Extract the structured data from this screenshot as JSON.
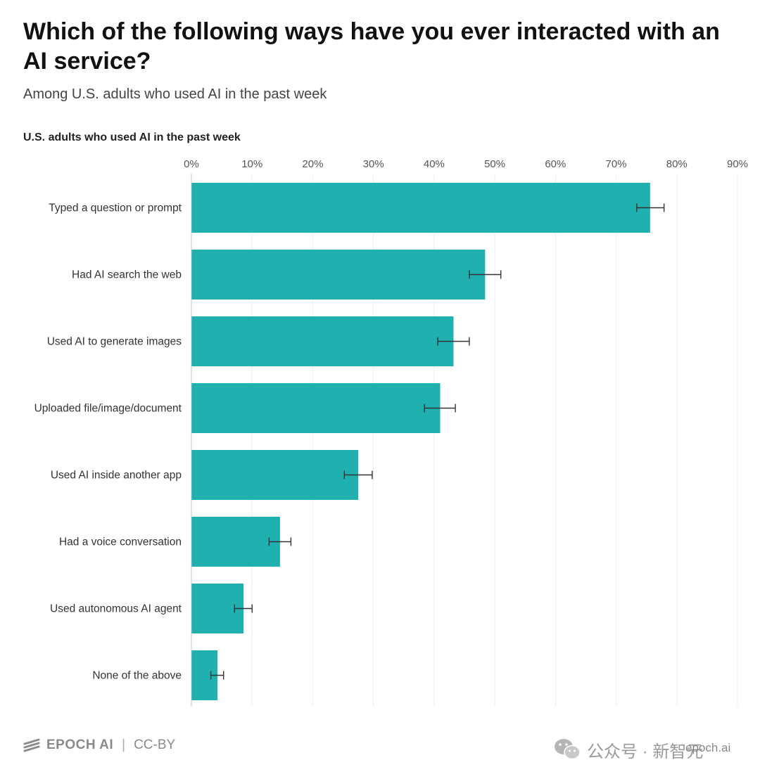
{
  "title": "Which of the following ways have you ever interacted with an AI service?",
  "subtitle": "Among U.S. adults who used AI in the past week",
  "panel_label": "U.S. adults who used AI in the past week",
  "colors": {
    "bar": "#1fb0af",
    "grid": "#ececec",
    "axis": "#bdbdbd",
    "errorbar": "#333333"
  },
  "chart_data": {
    "type": "bar",
    "orientation": "horizontal",
    "categories": [
      "Typed a question or prompt",
      "Had AI search the web",
      "Used AI to generate images",
      "Uploaded file/image/document",
      "Used AI inside another app",
      "Had a voice conversation",
      "Used autonomous AI agent",
      "None of the above"
    ],
    "values": [
      75.6,
      48.4,
      43.2,
      41.0,
      27.5,
      14.6,
      8.6,
      4.3
    ],
    "error_low": [
      73.4,
      45.8,
      40.6,
      38.4,
      25.2,
      12.8,
      7.1,
      3.2
    ],
    "error_high": [
      77.9,
      51.0,
      45.8,
      43.5,
      29.8,
      16.4,
      10.0,
      5.3
    ],
    "xlim": [
      0,
      90
    ],
    "ticks": [
      0,
      10,
      20,
      30,
      40,
      50,
      60,
      70,
      80,
      90
    ],
    "tick_labels": [
      "0%",
      "10%",
      "20%",
      "30%",
      "40%",
      "50%",
      "60%",
      "70%",
      "80%",
      "90%"
    ],
    "grid": true,
    "axis_position": "top"
  },
  "footer": {
    "logo_icon": "epoch-logo-icon",
    "brand": "EPOCH AI",
    "separator": "|",
    "license": "CC-BY"
  },
  "watermark": {
    "icon": "wechat-icon",
    "text": "公众号 · 新智元",
    "domain": "epoch.ai"
  }
}
